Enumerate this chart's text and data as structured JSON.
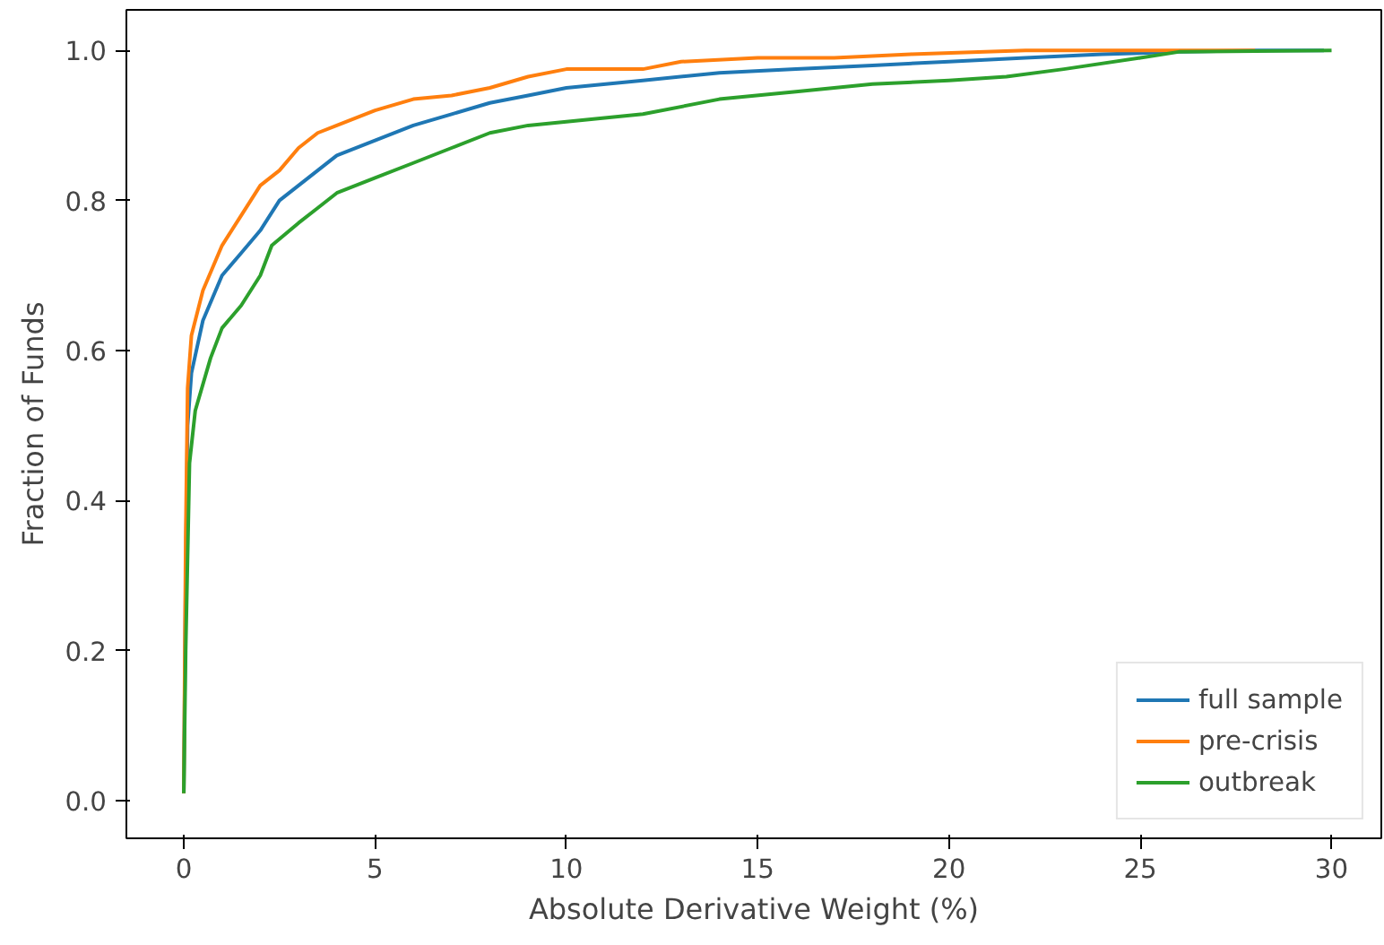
{
  "chart_data": {
    "type": "line",
    "xlabel": "Absolute Derivative Weight (%)",
    "ylabel": "Fraction of Funds",
    "xlim": [
      -1.5,
      31.3
    ],
    "ylim": [
      -0.05,
      1.054
    ],
    "xticks": [
      0,
      5,
      10,
      15,
      20,
      25,
      30
    ],
    "yticks": [
      {
        "value": 0,
        "label": "0.0"
      },
      0.2,
      0.4,
      0.6,
      0.8,
      {
        "value": 1,
        "label": "1.0"
      }
    ],
    "grid": false,
    "legend": "bottom right",
    "series": [
      {
        "name": "full sample",
        "color": "#1f77b4",
        "x": [
          0,
          0.05,
          0.1,
          0.2,
          0.5,
          1,
          1.5,
          2,
          2.5,
          3,
          4,
          5,
          6,
          7,
          8,
          9,
          10,
          12,
          14,
          16,
          18,
          20,
          22,
          24,
          26,
          28,
          29.8
        ],
        "values": [
          0.01,
          0.3,
          0.5,
          0.57,
          0.64,
          0.7,
          0.73,
          0.76,
          0.8,
          0.82,
          0.86,
          0.88,
          0.9,
          0.915,
          0.93,
          0.94,
          0.95,
          0.96,
          0.97,
          0.975,
          0.98,
          0.985,
          0.99,
          0.995,
          0.998,
          1.0,
          1.0
        ]
      },
      {
        "name": "pre-crisis",
        "color": "#ff7f0e",
        "x": [
          0,
          0.05,
          0.1,
          0.2,
          0.5,
          1,
          1.5,
          2,
          2.5,
          3,
          3.5,
          4,
          5,
          6,
          7,
          8,
          9,
          10,
          12,
          13,
          15,
          17,
          19,
          22,
          28
        ],
        "values": [
          0.01,
          0.35,
          0.55,
          0.62,
          0.68,
          0.74,
          0.78,
          0.82,
          0.84,
          0.87,
          0.89,
          0.9,
          0.92,
          0.935,
          0.94,
          0.95,
          0.965,
          0.975,
          0.975,
          0.985,
          0.99,
          0.99,
          0.995,
          1.0,
          1.0
        ]
      },
      {
        "name": "outbreak",
        "color": "#2ca02c",
        "x": [
          0,
          0.05,
          0.15,
          0.3,
          0.7,
          1,
          1.5,
          2,
          2.3,
          3,
          3.5,
          4,
          5,
          6,
          7,
          8,
          9,
          10,
          12,
          14,
          16,
          18,
          20,
          21.5,
          23,
          25,
          26,
          30
        ],
        "values": [
          0.01,
          0.2,
          0.45,
          0.52,
          0.59,
          0.63,
          0.66,
          0.7,
          0.74,
          0.77,
          0.79,
          0.81,
          0.83,
          0.85,
          0.87,
          0.89,
          0.9,
          0.905,
          0.915,
          0.935,
          0.945,
          0.955,
          0.96,
          0.965,
          0.975,
          0.99,
          0.998,
          1.0
        ]
      }
    ]
  }
}
